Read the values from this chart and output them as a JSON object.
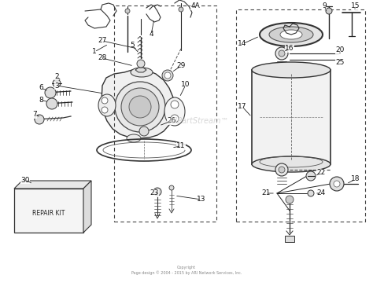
{
  "background_color": "#ffffff",
  "watermark_text": "AllPartStream™",
  "copyright_text": "Copyright\nPage design © 2004 - 2015 by ARI Network Services, Inc.",
  "repair_kit_label": "REPAIR KIT",
  "lc": "#222222",
  "lw": 0.8
}
